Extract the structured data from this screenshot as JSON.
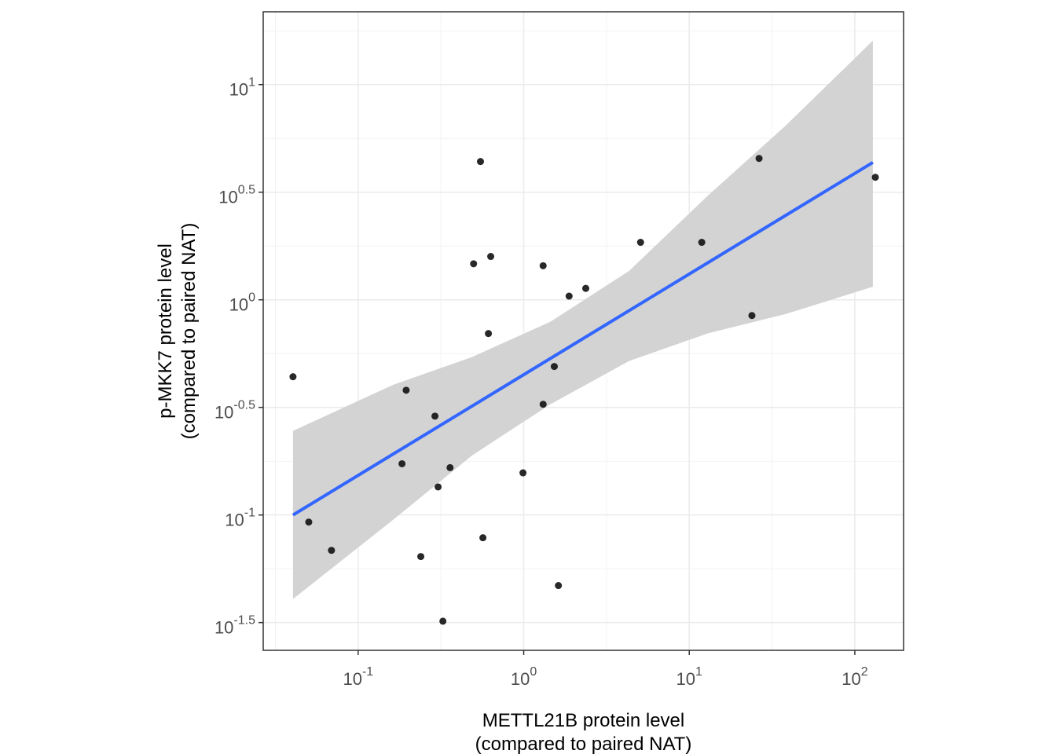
{
  "chart_data": {
    "type": "scatter",
    "x_label": [
      "METTL21B protein level",
      "(compared to paired NAT)"
    ],
    "y_label": [
      "p-MKK7 protein level",
      "(compared to paired NAT)"
    ],
    "log_x": true,
    "log_y": true,
    "grid": true,
    "xlim": [
      0.0267,
      197
    ],
    "ylim": [
      0.0235,
      21.8
    ],
    "xticks": [
      {
        "value": 0.1,
        "label": "10",
        "exponent": "-1"
      },
      {
        "value": 1,
        "label": "10",
        "exponent": "0"
      },
      {
        "value": 10,
        "label": "10",
        "exponent": "1"
      },
      {
        "value": 100,
        "label": "10",
        "exponent": "2"
      }
    ],
    "yticks": [
      {
        "value": 0.031623,
        "label": "10",
        "exponent": "-1.5"
      },
      {
        "value": 0.1,
        "label": "10",
        "exponent": "-1"
      },
      {
        "value": 0.31623,
        "label": "10",
        "exponent": "-0.5"
      },
      {
        "value": 1,
        "label": "10",
        "exponent": "0"
      },
      {
        "value": 3.1623,
        "label": "10",
        "exponent": "0.5"
      },
      {
        "value": 10,
        "label": "10",
        "exponent": "1"
      }
    ],
    "minor_xticks": [
      0.031623,
      0.31623,
      3.1623,
      31.623
    ],
    "minor_yticks": [
      0.056234,
      0.17783,
      0.56234,
      1.7783,
      5.6234,
      17.783
    ],
    "points": {
      "color": "#111111",
      "x": [
        0.0404,
        0.0503,
        0.069,
        0.195,
        0.184,
        0.291,
        0.239,
        0.304,
        0.325,
        0.359,
        0.548,
        0.498,
        0.632,
        0.612,
        0.567,
        0.99,
        1.31,
        1.31,
        1.53,
        1.62,
        1.88,
        2.37,
        5.08,
        11.9,
        23.9,
        26.4,
        133
      ],
      "values": [
        0.439,
        0.0927,
        0.0685,
        0.38,
        0.173,
        0.288,
        0.0641,
        0.135,
        0.0321,
        0.166,
        4.39,
        1.47,
        1.59,
        0.697,
        0.0784,
        0.157,
        1.44,
        0.327,
        0.49,
        0.047,
        1.04,
        1.13,
        1.85,
        1.85,
        0.845,
        4.54,
        3.71
      ]
    },
    "fit": {
      "color": "#3366ff",
      "x": [
        0.0404,
        128.5
      ],
      "values": [
        0.1,
        4.35
      ]
    },
    "band": {
      "color": "#d3d3d3",
      "x": [
        0.0404,
        0.163,
        0.487,
        1.45,
        4.32,
        12.85,
        38.3,
        128.5
      ],
      "upper": [
        0.246,
        0.403,
        0.542,
        0.791,
        1.36,
        3.03,
        6.46,
        16.0
      ],
      "lower": [
        0.0407,
        0.0951,
        0.189,
        0.327,
        0.519,
        0.697,
        0.859,
        1.15
      ]
    }
  }
}
